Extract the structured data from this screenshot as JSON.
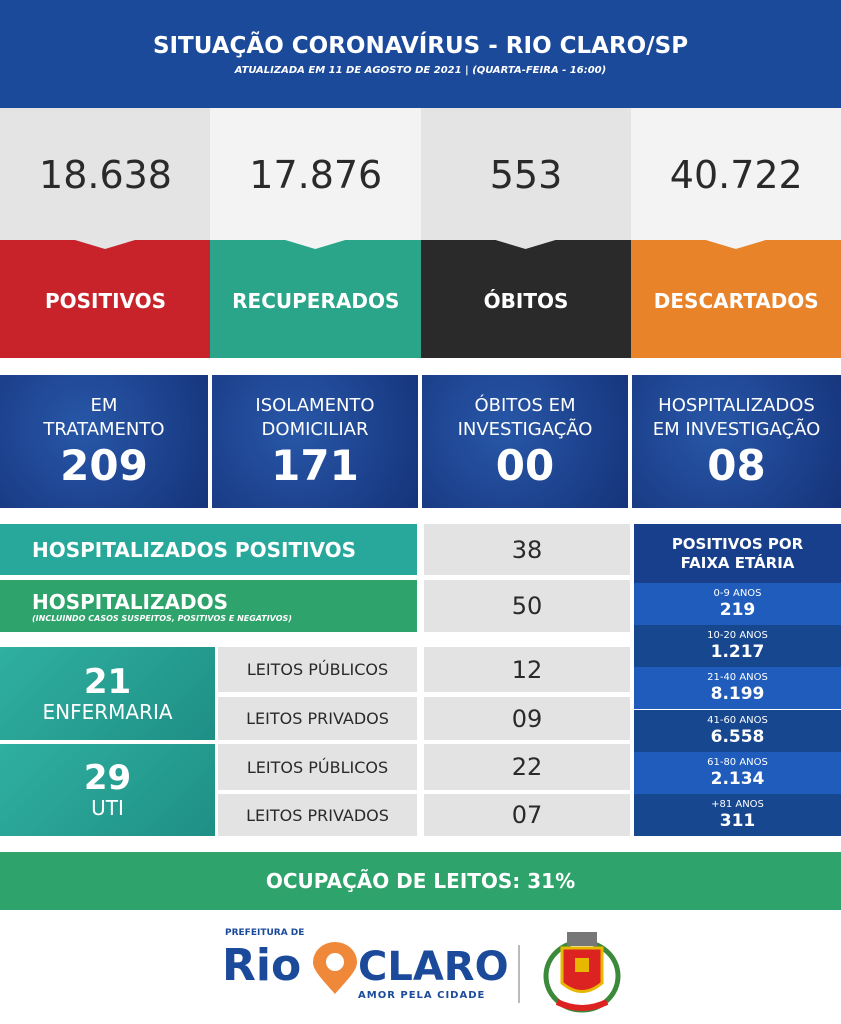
{
  "header": {
    "title": "SITUAÇÃO CORONAVÍRUS - RIO CLARO/SP",
    "subtitle": "ATUALIZADA EM 11 DE AGOSTO DE 2021 | (QUARTA-FEIRA - 16:00)"
  },
  "cards": [
    {
      "value": "18.638",
      "label": "POSITIVOS"
    },
    {
      "value": "17.876",
      "label": "RECUPERADOS"
    },
    {
      "value": "553",
      "label": "ÓBITOS"
    },
    {
      "value": "40.722",
      "label": "DESCARTADOS"
    }
  ],
  "status": [
    {
      "lines": [
        "EM",
        "TRATAMENTO"
      ],
      "value": "209"
    },
    {
      "lines": [
        "ISOLAMENTO",
        "DOMICILIAR"
      ],
      "value": "171"
    },
    {
      "lines": [
        "ÓBITOS EM",
        "INVESTIGAÇÃO"
      ],
      "value": "00"
    },
    {
      "lines": [
        "HOSPITALIZADOS",
        "EM INVESTIGAÇÃO"
      ],
      "value": "08"
    }
  ],
  "hospital": [
    {
      "label": "HOSPITALIZADOS POSITIVOS",
      "value": "38"
    },
    {
      "label": "HOSPITALIZADOS",
      "note": "(INCLUINDO CASOS SUSPEITOS, POSITIVOS E NEGATIVOS)",
      "value": "50"
    }
  ],
  "wards": [
    {
      "count": "21",
      "label": "ENFERMARIA",
      "rows": [
        {
          "label": "LEITOS PÚBLICOS",
          "value": "12"
        },
        {
          "label": "LEITOS PRIVADOS",
          "value": "09"
        }
      ]
    },
    {
      "count": "29",
      "label": "UTI",
      "rows": [
        {
          "label": "LEITOS PÚBLICOS",
          "value": "22"
        },
        {
          "label": "LEITOS PRIVADOS",
          "value": "07"
        }
      ]
    }
  ],
  "age": {
    "title": [
      "POSITIVOS POR",
      "FAIXA ETÁRIA"
    ],
    "groups": [
      {
        "label": "0-9 ANOS",
        "value": "219"
      },
      {
        "label": "10-20 ANOS",
        "value": "1.217"
      },
      {
        "label": "21-40 ANOS",
        "value": "8.199"
      },
      {
        "label": "41-60 ANOS",
        "value": "6.558"
      },
      {
        "label": "61-80 ANOS",
        "value": "2.134"
      },
      {
        "label": "+81 ANOS",
        "value": "311"
      }
    ]
  },
  "occupancy": "OCUPAÇÃO DE LEITOS: 31%",
  "footer": {
    "prefix": "PREFEITURA DE",
    "rio": "Rio",
    "claro": "CLARO",
    "slogan": "AMOR PELA CIDADE"
  }
}
